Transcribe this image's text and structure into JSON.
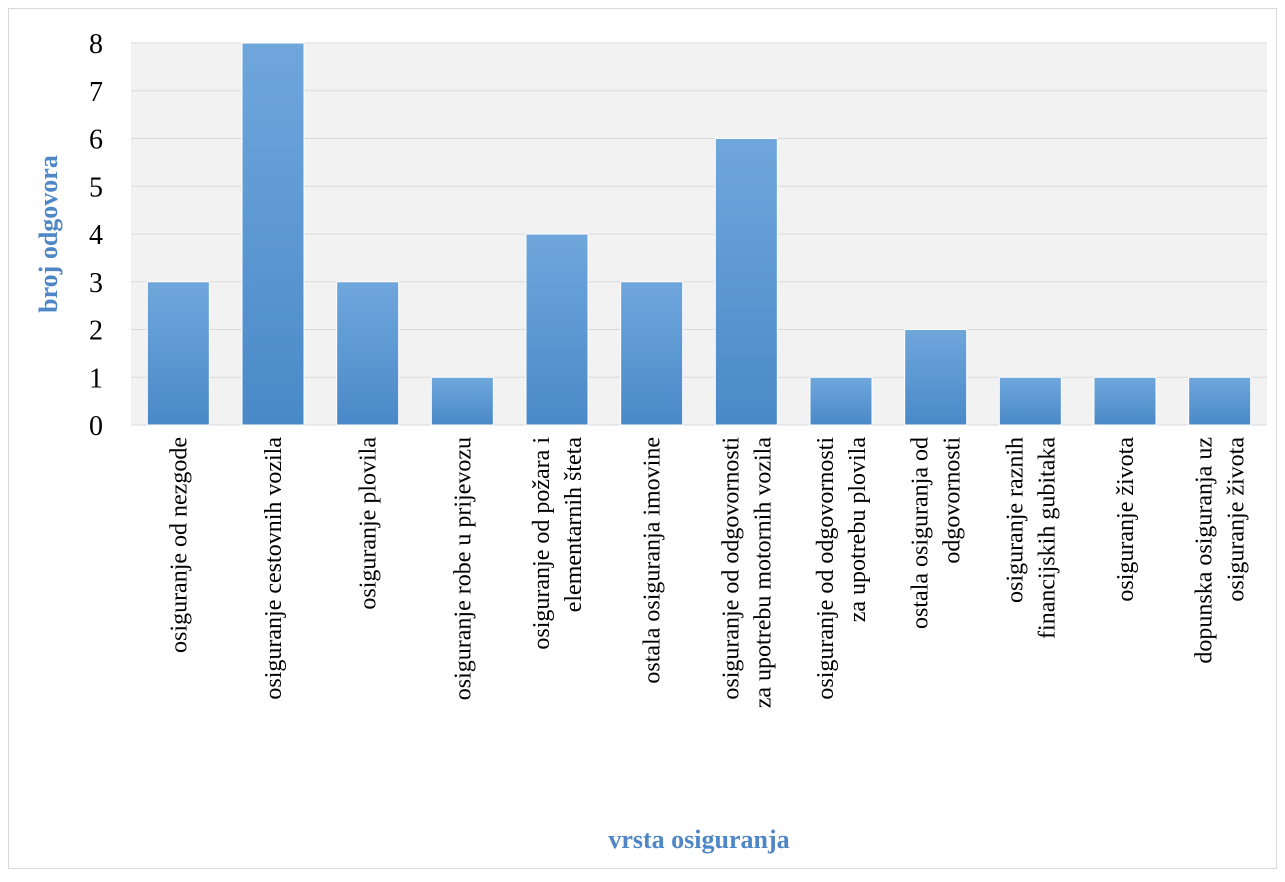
{
  "chart_data": {
    "type": "bar",
    "title": "",
    "xlabel": "vrsta osiguranja",
    "ylabel": "broj odgovora",
    "ylim": [
      0,
      8
    ],
    "yticks": [
      "0",
      "1",
      "2",
      "3",
      "4",
      "5",
      "6",
      "7",
      "8"
    ],
    "grid": true,
    "legend": "none",
    "categories": [
      [
        "osiguranje od nezgode"
      ],
      [
        "osiguranje cestovnih vozila"
      ],
      [
        "osiguranje plovila"
      ],
      [
        "osiguranje robe u prijevozu"
      ],
      [
        "osiguranje od požara i",
        "elementarnih šteta"
      ],
      [
        "ostala osiguranja imovine"
      ],
      [
        "osiguranje od odgovornosti",
        "za upotrebu motornih vozila"
      ],
      [
        "osiguranje od odgovornosti",
        "za upotrebu plovila"
      ],
      [
        "ostala osiguranja od",
        "odgovornosti"
      ],
      [
        "osiguranje raznih",
        "financijskih gubitaka"
      ],
      [
        "osiguranje života"
      ],
      [
        "dopunska osiguranja uz",
        "osiguranje života"
      ]
    ],
    "values": [
      3,
      8,
      3,
      1,
      4,
      3,
      6,
      1,
      2,
      1,
      1,
      1
    ],
    "colors": {
      "bar": "#5b9bd5",
      "bar_light": "#6fa7dc",
      "bar_dark": "#4a89c8",
      "axis_title": "#4f86c6",
      "plot_bg": "#f2f2f2",
      "gridline": "#d9d9d9",
      "tick_text": "#000000"
    }
  }
}
